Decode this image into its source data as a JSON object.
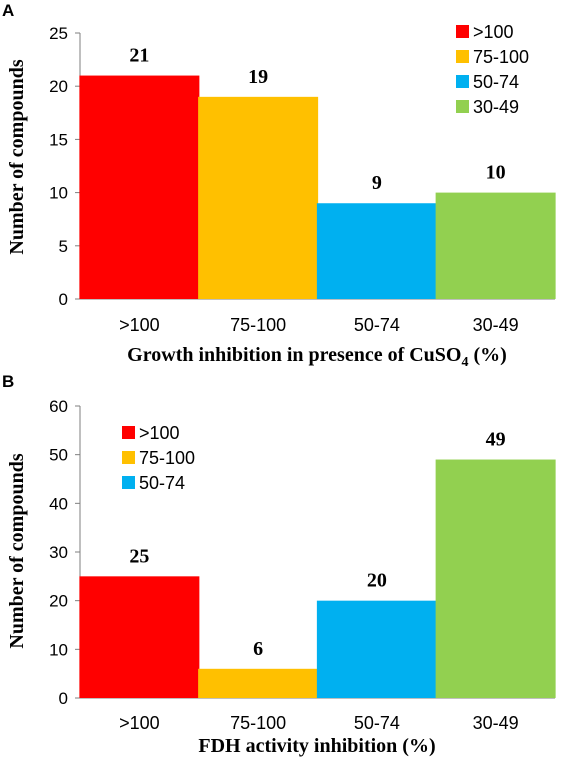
{
  "chart_data": [
    {
      "panel": "A",
      "type": "bar",
      "categories": [
        ">100",
        "75-100",
        "50-74",
        "30-49"
      ],
      "values": [
        21,
        19,
        9,
        10
      ],
      "colors": [
        "#ff0000",
        "#ffc000",
        "#00b0f0",
        "#92d050"
      ],
      "xlabel": "Growth inhibition in presence of CuSO4 (%)",
      "xlabel_main": "Growth inhibition in presence of CuSO",
      "xlabel_sub": "4",
      "xlabel_tail": " (%)",
      "ylabel": "Number of compounds",
      "ylim": [
        0,
        25
      ],
      "yticks": [
        0,
        5,
        10,
        15,
        20,
        25
      ],
      "legend": [
        ">100",
        "75-100",
        "50-74",
        "30-49"
      ],
      "legend_position": "top-right",
      "grid": false
    },
    {
      "panel": "B",
      "type": "bar",
      "categories": [
        ">100",
        "75-100",
        "50-74",
        "30-49"
      ],
      "values": [
        25,
        6,
        20,
        49
      ],
      "colors": [
        "#ff0000",
        "#ffc000",
        "#00b0f0",
        "#92d050"
      ],
      "xlabel": "FDH activity inhibition (%)",
      "ylabel": "Number of compounds",
      "ylim": [
        0,
        60
      ],
      "yticks": [
        0,
        10,
        20,
        30,
        40,
        50,
        60
      ],
      "legend": [
        ">100",
        "75-100",
        "50-74"
      ],
      "legend_position": "top-left",
      "grid": false
    }
  ]
}
